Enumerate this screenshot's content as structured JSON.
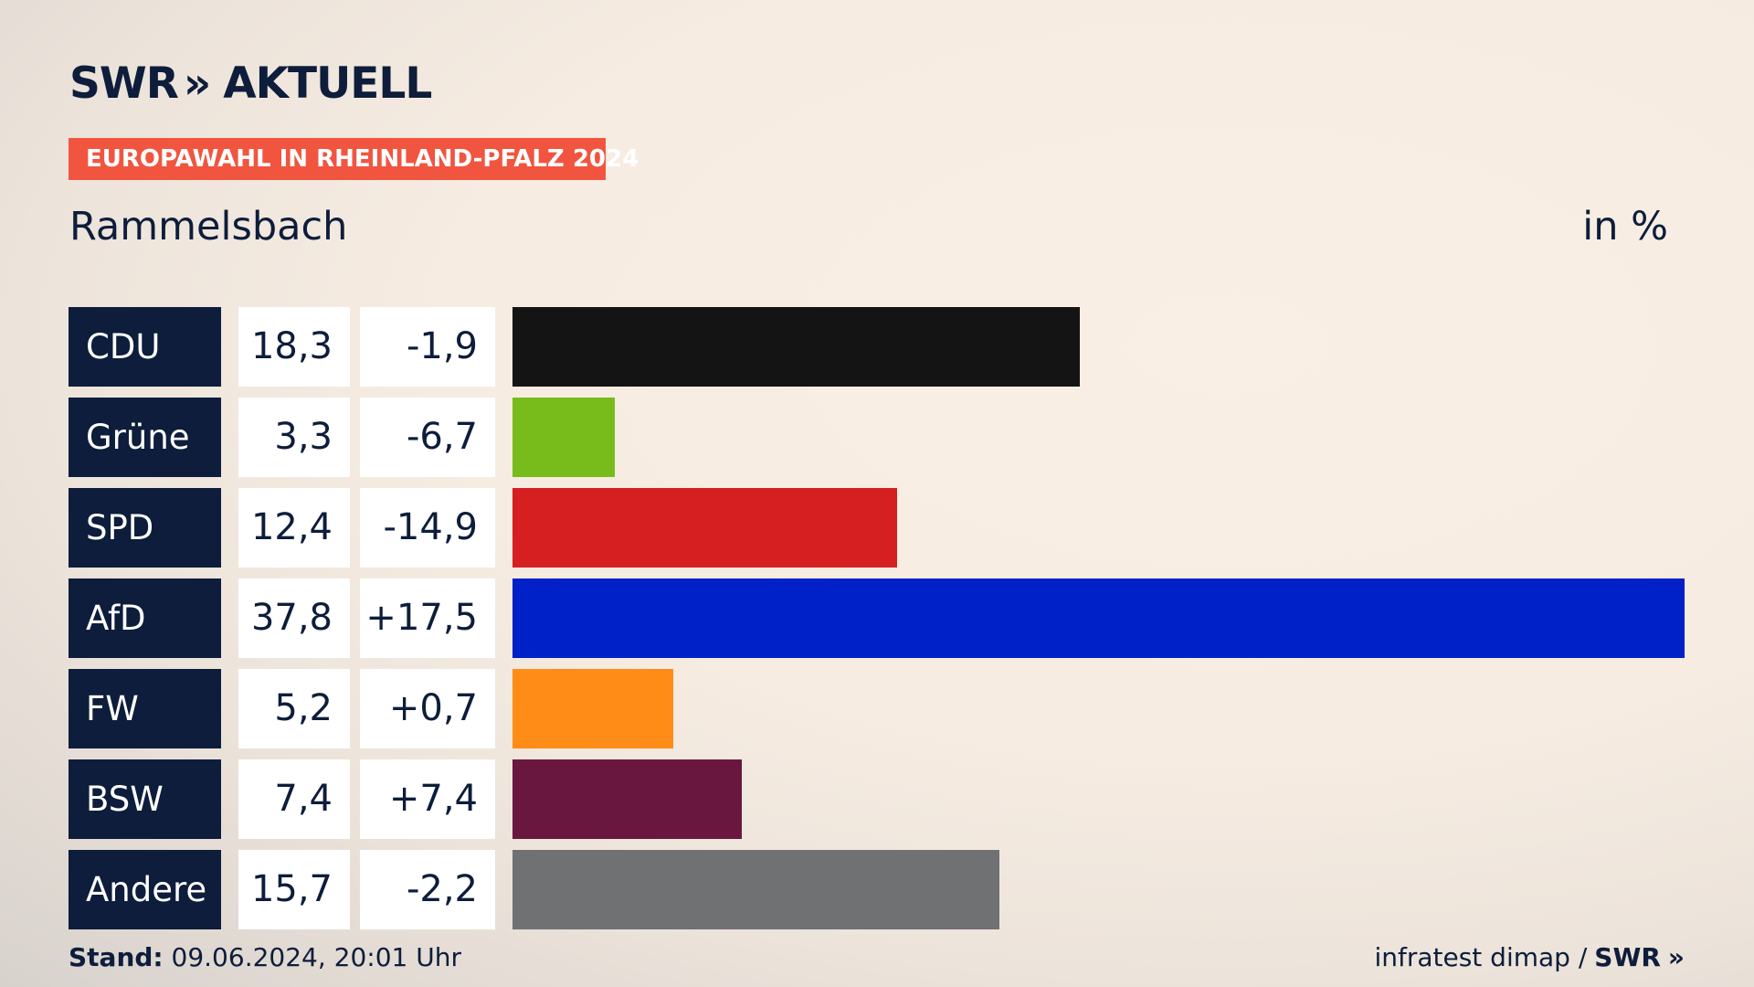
{
  "header": {
    "logo_text": "SWR",
    "logo_chevrons": "»",
    "logo_suffix": "AKTUELL",
    "banner": "EUROPAWAHL IN RHEINLAND-PFALZ 2024",
    "subtitle": "Rammelsbach",
    "unit": "in %"
  },
  "colors": {
    "navy": "#0d1d3b",
    "banner": "#f1553f"
  },
  "chart_data": {
    "type": "bar",
    "orientation": "horizontal",
    "title": "EUROPAWAHL IN RHEINLAND-PFALZ 2024",
    "subtitle": "Rammelsbach",
    "unit": "in %",
    "xlim": [
      0,
      37.8
    ],
    "categories": [
      "CDU",
      "Grüne",
      "SPD",
      "AfD",
      "FW",
      "BSW",
      "Andere"
    ],
    "values": [
      18.3,
      3.3,
      12.4,
      37.8,
      5.2,
      7.4,
      15.7
    ],
    "value_labels": [
      "18,3",
      "3,3",
      "12,4",
      "37,8",
      "5,2",
      "7,4",
      "15,7"
    ],
    "change_labels": [
      "-1,9",
      "-6,7",
      "-14,9",
      "+17,5",
      "+0,7",
      "+7,4",
      "-2,2"
    ],
    "bar_colors": [
      "#141414",
      "#78bc1b",
      "#d61f20",
      "#0021c8",
      "#fe8c16",
      "#6a173f",
      "#707173"
    ]
  },
  "footer": {
    "stand_label": "Stand:",
    "stand_value": "09.06.2024, 20:01 Uhr",
    "source": "infratest dimap /",
    "source_brand": "SWR",
    "source_chevrons": "»"
  }
}
